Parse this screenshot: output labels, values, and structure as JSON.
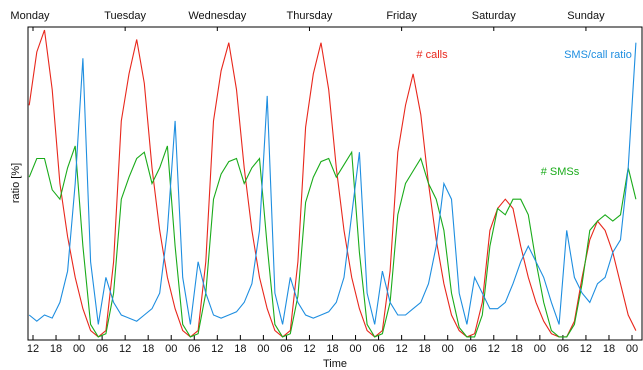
{
  "chart_data": {
    "type": "line",
    "xlabel": "Time",
    "ylabel": "ratio [%]",
    "xlim": [
      10.7,
      170.6
    ],
    "ylim": [
      0,
      100
    ],
    "xticks": [
      12,
      18,
      {
        "value": 24,
        "label": "00"
      },
      {
        "value": 30,
        "label": "06"
      },
      {
        "value": 36,
        "label": "12"
      },
      {
        "value": 42,
        "label": "18"
      },
      {
        "value": 48,
        "label": "00"
      },
      {
        "value": 54,
        "label": "06"
      },
      {
        "value": 60,
        "label": "12"
      },
      {
        "value": 66,
        "label": "18"
      },
      {
        "value": 72,
        "label": "00"
      },
      {
        "value": 78,
        "label": "06"
      },
      {
        "value": 84,
        "label": "12"
      },
      {
        "value": 90,
        "label": "18"
      },
      {
        "value": 96,
        "label": "00"
      },
      {
        "value": 102,
        "label": "06"
      },
      {
        "value": 108,
        "label": "12"
      },
      {
        "value": 114,
        "label": "18"
      },
      {
        "value": 120,
        "label": "00"
      },
      {
        "value": 126,
        "label": "06"
      },
      {
        "value": 132,
        "label": "12"
      },
      {
        "value": 138,
        "label": "18"
      },
      {
        "value": 144,
        "label": "00"
      },
      {
        "value": 150,
        "label": "06"
      },
      {
        "value": 156,
        "label": "12"
      },
      {
        "value": 162,
        "label": "18"
      },
      {
        "value": 168,
        "label": "00"
      }
    ],
    "x2ticks": [
      {
        "value": 12,
        "label": "Monday"
      },
      {
        "value": 36,
        "label": "Tuesday"
      },
      {
        "value": 60,
        "label": "Wednesday"
      },
      {
        "value": 84,
        "label": "Thursday"
      },
      {
        "value": 108,
        "label": "Friday"
      },
      {
        "value": 132,
        "label": "Saturday"
      },
      {
        "value": 156,
        "label": "Sunday"
      }
    ],
    "x": [
      11,
      13,
      15,
      17,
      19,
      21,
      23,
      25,
      27,
      29,
      31,
      33,
      35,
      37,
      39,
      41,
      43,
      45,
      47,
      49,
      51,
      53,
      55,
      57,
      59,
      61,
      63,
      65,
      67,
      69,
      71,
      73,
      75,
      77,
      79,
      81,
      83,
      85,
      87,
      89,
      91,
      93,
      95,
      97,
      99,
      101,
      103,
      105,
      107,
      109,
      111,
      113,
      115,
      117,
      119,
      121,
      123,
      125,
      127,
      129,
      131,
      133,
      135,
      137,
      139,
      141,
      143,
      145,
      147,
      149,
      151,
      153,
      155,
      157,
      159,
      161,
      163,
      165,
      167,
      169
    ],
    "series": [
      {
        "name": "# calls",
        "color": "#e8271c",
        "values": [
          75,
          92,
          99,
          80,
          50,
          33,
          20,
          10,
          3,
          1,
          3,
          25,
          70,
          85,
          96,
          82,
          55,
          35,
          20,
          10,
          3,
          1,
          3,
          25,
          70,
          86,
          95,
          80,
          55,
          35,
          20,
          10,
          3,
          1,
          3,
          25,
          68,
          85,
          95,
          80,
          55,
          35,
          20,
          10,
          3,
          1,
          3,
          22,
          60,
          75,
          85,
          72,
          50,
          32,
          18,
          8,
          3,
          1,
          2,
          12,
          35,
          42,
          45,
          42,
          30,
          20,
          12,
          6,
          2,
          1,
          1,
          6,
          20,
          32,
          38,
          35,
          28,
          18,
          8,
          3
        ]
      },
      {
        "name": "# SMSs",
        "color": "#1aab1a",
        "values": [
          52,
          58,
          58,
          48,
          45,
          55,
          62,
          30,
          5,
          1,
          2,
          15,
          45,
          52,
          58,
          60,
          50,
          55,
          62,
          30,
          5,
          1,
          2,
          15,
          45,
          53,
          57,
          58,
          50,
          55,
          58,
          30,
          5,
          1,
          2,
          14,
          44,
          52,
          57,
          58,
          52,
          56,
          60,
          28,
          5,
          1,
          2,
          12,
          40,
          50,
          54,
          58,
          50,
          45,
          35,
          15,
          4,
          1,
          1,
          8,
          30,
          42,
          40,
          45,
          45,
          40,
          25,
          12,
          3,
          1,
          1,
          5,
          18,
          35,
          38,
          40,
          38,
          40,
          55,
          45
        ]
      },
      {
        "name": "SMS/call ratio",
        "color": "#1e8ee0",
        "values": [
          8,
          6,
          8,
          7,
          12,
          22,
          50,
          90,
          25,
          5,
          20,
          12,
          8,
          7,
          6,
          8,
          10,
          15,
          35,
          70,
          20,
          5,
          25,
          15,
          8,
          7,
          8,
          9,
          12,
          18,
          35,
          78,
          15,
          5,
          20,
          12,
          8,
          7,
          8,
          9,
          12,
          20,
          40,
          60,
          15,
          5,
          22,
          12,
          8,
          8,
          10,
          12,
          18,
          30,
          50,
          45,
          15,
          5,
          20,
          15,
          10,
          10,
          12,
          18,
          25,
          30,
          25,
          20,
          12,
          5,
          35,
          20,
          15,
          12,
          18,
          20,
          28,
          32,
          55,
          95
        ]
      }
    ]
  }
}
